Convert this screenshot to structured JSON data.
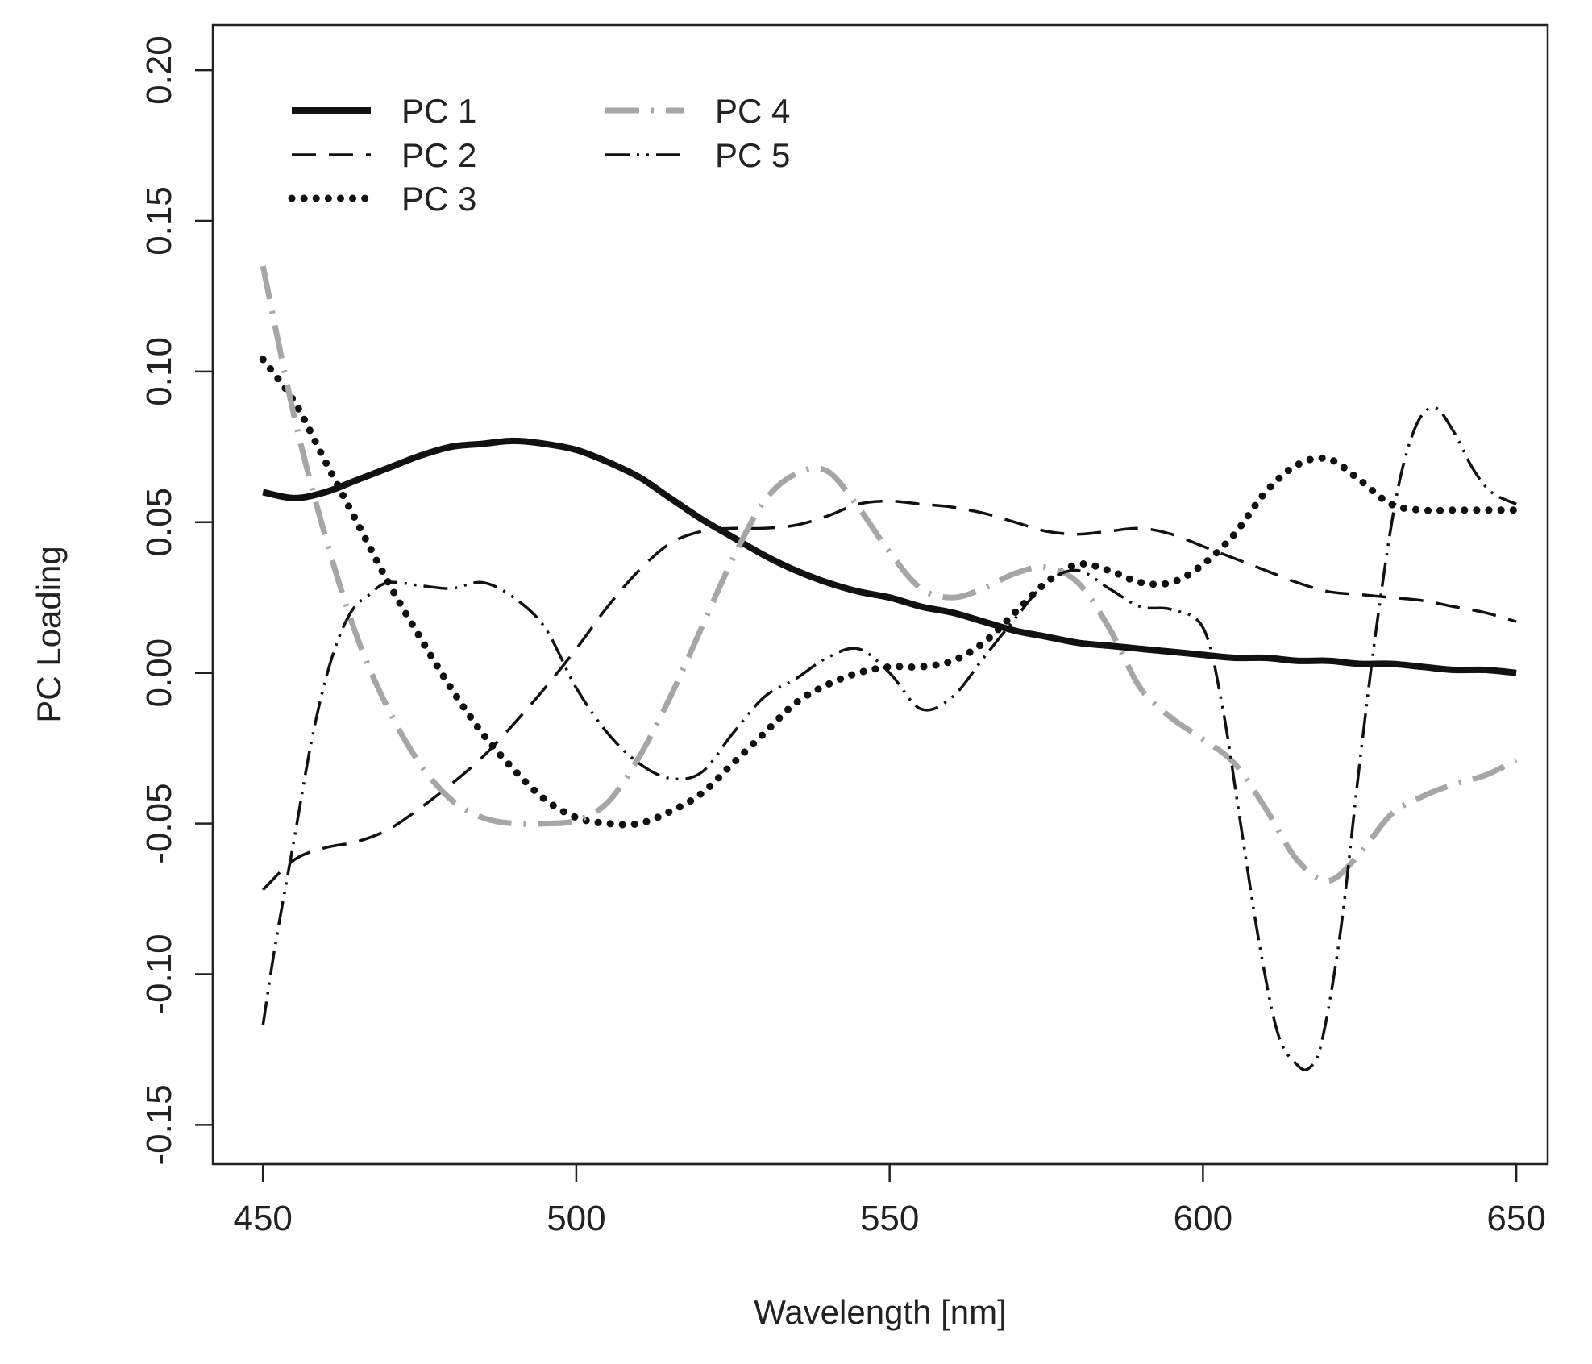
{
  "chart_data": {
    "type": "line",
    "title": "",
    "xlabel": "Wavelength [nm]",
    "ylabel": "PC Loading",
    "xlim": [
      442,
      655
    ],
    "ylim": [
      -0.163,
      0.215
    ],
    "xticks": [
      450,
      500,
      550,
      600,
      650
    ],
    "xtick_labels": [
      "450",
      "500",
      "550",
      "600",
      "650"
    ],
    "yticks": [
      -0.15,
      -0.1,
      -0.05,
      0.0,
      0.05,
      0.1,
      0.15,
      0.2
    ],
    "ytick_labels": [
      "-0.15",
      "-0.10",
      "-0.05",
      "0.00",
      "0.05",
      "0.10",
      "0.15",
      "0.20"
    ],
    "grid": false,
    "legend_position": "top-left",
    "series": [
      {
        "name": "PC 1",
        "legend_label": "PC  1",
        "color": "#111111",
        "style": "solid",
        "x": [
          450,
          455,
          460,
          465,
          470,
          475,
          480,
          485,
          490,
          495,
          500,
          505,
          510,
          515,
          520,
          525,
          530,
          535,
          540,
          545,
          550,
          555,
          560,
          565,
          570,
          575,
          580,
          585,
          590,
          595,
          600,
          605,
          610,
          615,
          620,
          625,
          630,
          635,
          640,
          645,
          650
        ],
        "values": [
          0.06,
          0.058,
          0.06,
          0.064,
          0.068,
          0.072,
          0.075,
          0.076,
          0.077,
          0.076,
          0.074,
          0.07,
          0.065,
          0.058,
          0.051,
          0.045,
          0.039,
          0.034,
          0.03,
          0.027,
          0.025,
          0.022,
          0.02,
          0.017,
          0.014,
          0.012,
          0.01,
          0.009,
          0.008,
          0.007,
          0.006,
          0.005,
          0.005,
          0.004,
          0.004,
          0.003,
          0.003,
          0.002,
          0.001,
          0.001,
          0.0
        ]
      },
      {
        "name": "PC 2",
        "legend_label": "PC 2",
        "color": "#111111",
        "style": "dashed",
        "x": [
          450,
          455,
          460,
          465,
          470,
          475,
          480,
          485,
          490,
          495,
          500,
          505,
          510,
          515,
          520,
          525,
          530,
          535,
          540,
          545,
          550,
          555,
          560,
          565,
          570,
          575,
          580,
          585,
          590,
          595,
          600,
          605,
          610,
          615,
          620,
          625,
          630,
          635,
          640,
          645,
          650
        ],
        "values": [
          -0.072,
          -0.062,
          -0.058,
          -0.056,
          -0.052,
          -0.045,
          -0.037,
          -0.028,
          -0.017,
          -0.005,
          0.008,
          0.022,
          0.034,
          0.043,
          0.047,
          0.048,
          0.048,
          0.049,
          0.052,
          0.056,
          0.057,
          0.056,
          0.055,
          0.053,
          0.05,
          0.047,
          0.046,
          0.047,
          0.048,
          0.046,
          0.042,
          0.038,
          0.034,
          0.03,
          0.027,
          0.026,
          0.025,
          0.024,
          0.022,
          0.02,
          0.017
        ]
      },
      {
        "name": "PC 3",
        "legend_label": "PC 3",
        "color": "#111111",
        "style": "dotted",
        "x": [
          450,
          455,
          460,
          465,
          470,
          475,
          480,
          485,
          490,
          495,
          500,
          505,
          510,
          515,
          520,
          525,
          530,
          535,
          540,
          545,
          550,
          555,
          560,
          565,
          570,
          575,
          580,
          585,
          590,
          595,
          600,
          605,
          610,
          615,
          620,
          625,
          630,
          635,
          640,
          645,
          650
        ],
        "values": [
          0.104,
          0.09,
          0.07,
          0.05,
          0.03,
          0.012,
          -0.005,
          -0.02,
          -0.032,
          -0.042,
          -0.048,
          -0.05,
          -0.05,
          -0.046,
          -0.04,
          -0.03,
          -0.02,
          -0.01,
          -0.004,
          0.0,
          0.002,
          0.002,
          0.004,
          0.01,
          0.02,
          0.03,
          0.036,
          0.034,
          0.03,
          0.03,
          0.036,
          0.046,
          0.06,
          0.069,
          0.071,
          0.064,
          0.056,
          0.054,
          0.054,
          0.054,
          0.054
        ]
      },
      {
        "name": "PC 4",
        "legend_label": "PC  4",
        "color": "#a6a6a6",
        "style": "dashdot",
        "x": [
          450,
          455,
          460,
          465,
          470,
          475,
          480,
          485,
          490,
          495,
          500,
          505,
          510,
          515,
          520,
          525,
          530,
          535,
          540,
          545,
          550,
          555,
          560,
          565,
          570,
          575,
          580,
          585,
          590,
          595,
          600,
          605,
          610,
          615,
          620,
          625,
          630,
          635,
          640,
          645,
          650
        ],
        "values": [
          0.135,
          0.085,
          0.045,
          0.012,
          -0.012,
          -0.03,
          -0.042,
          -0.048,
          -0.05,
          -0.05,
          -0.049,
          -0.043,
          -0.028,
          -0.008,
          0.015,
          0.038,
          0.057,
          0.066,
          0.067,
          0.055,
          0.04,
          0.028,
          0.025,
          0.028,
          0.033,
          0.035,
          0.03,
          0.015,
          -0.005,
          -0.015,
          -0.022,
          -0.03,
          -0.045,
          -0.062,
          -0.069,
          -0.06,
          -0.047,
          -0.041,
          -0.037,
          -0.034,
          -0.029
        ]
      },
      {
        "name": "PC 5",
        "legend_label": "PC 5",
        "color": "#111111",
        "style": "dashdotdot",
        "x": [
          450,
          452,
          455,
          458,
          461,
          464,
          467,
          470,
          475,
          480,
          485,
          490,
          495,
          500,
          505,
          510,
          515,
          520,
          525,
          530,
          535,
          540,
          545,
          550,
          555,
          560,
          565,
          570,
          575,
          580,
          585,
          590,
          595,
          600,
          603,
          606,
          609,
          612,
          615,
          617,
          619,
          622,
          625,
          628,
          631,
          634,
          637,
          640,
          643,
          646,
          650
        ],
        "values": [
          -0.117,
          -0.09,
          -0.055,
          -0.02,
          0.005,
          0.02,
          0.026,
          0.03,
          0.029,
          0.028,
          0.03,
          0.025,
          0.015,
          -0.005,
          -0.02,
          -0.03,
          -0.035,
          -0.033,
          -0.02,
          -0.008,
          -0.002,
          0.005,
          0.008,
          0.0,
          -0.012,
          -0.008,
          0.005,
          0.018,
          0.03,
          0.034,
          0.028,
          0.022,
          0.021,
          0.015,
          -0.01,
          -0.05,
          -0.09,
          -0.12,
          -0.13,
          -0.131,
          -0.122,
          -0.085,
          -0.03,
          0.02,
          0.06,
          0.082,
          0.088,
          0.08,
          0.068,
          0.06,
          0.056
        ]
      }
    ]
  }
}
